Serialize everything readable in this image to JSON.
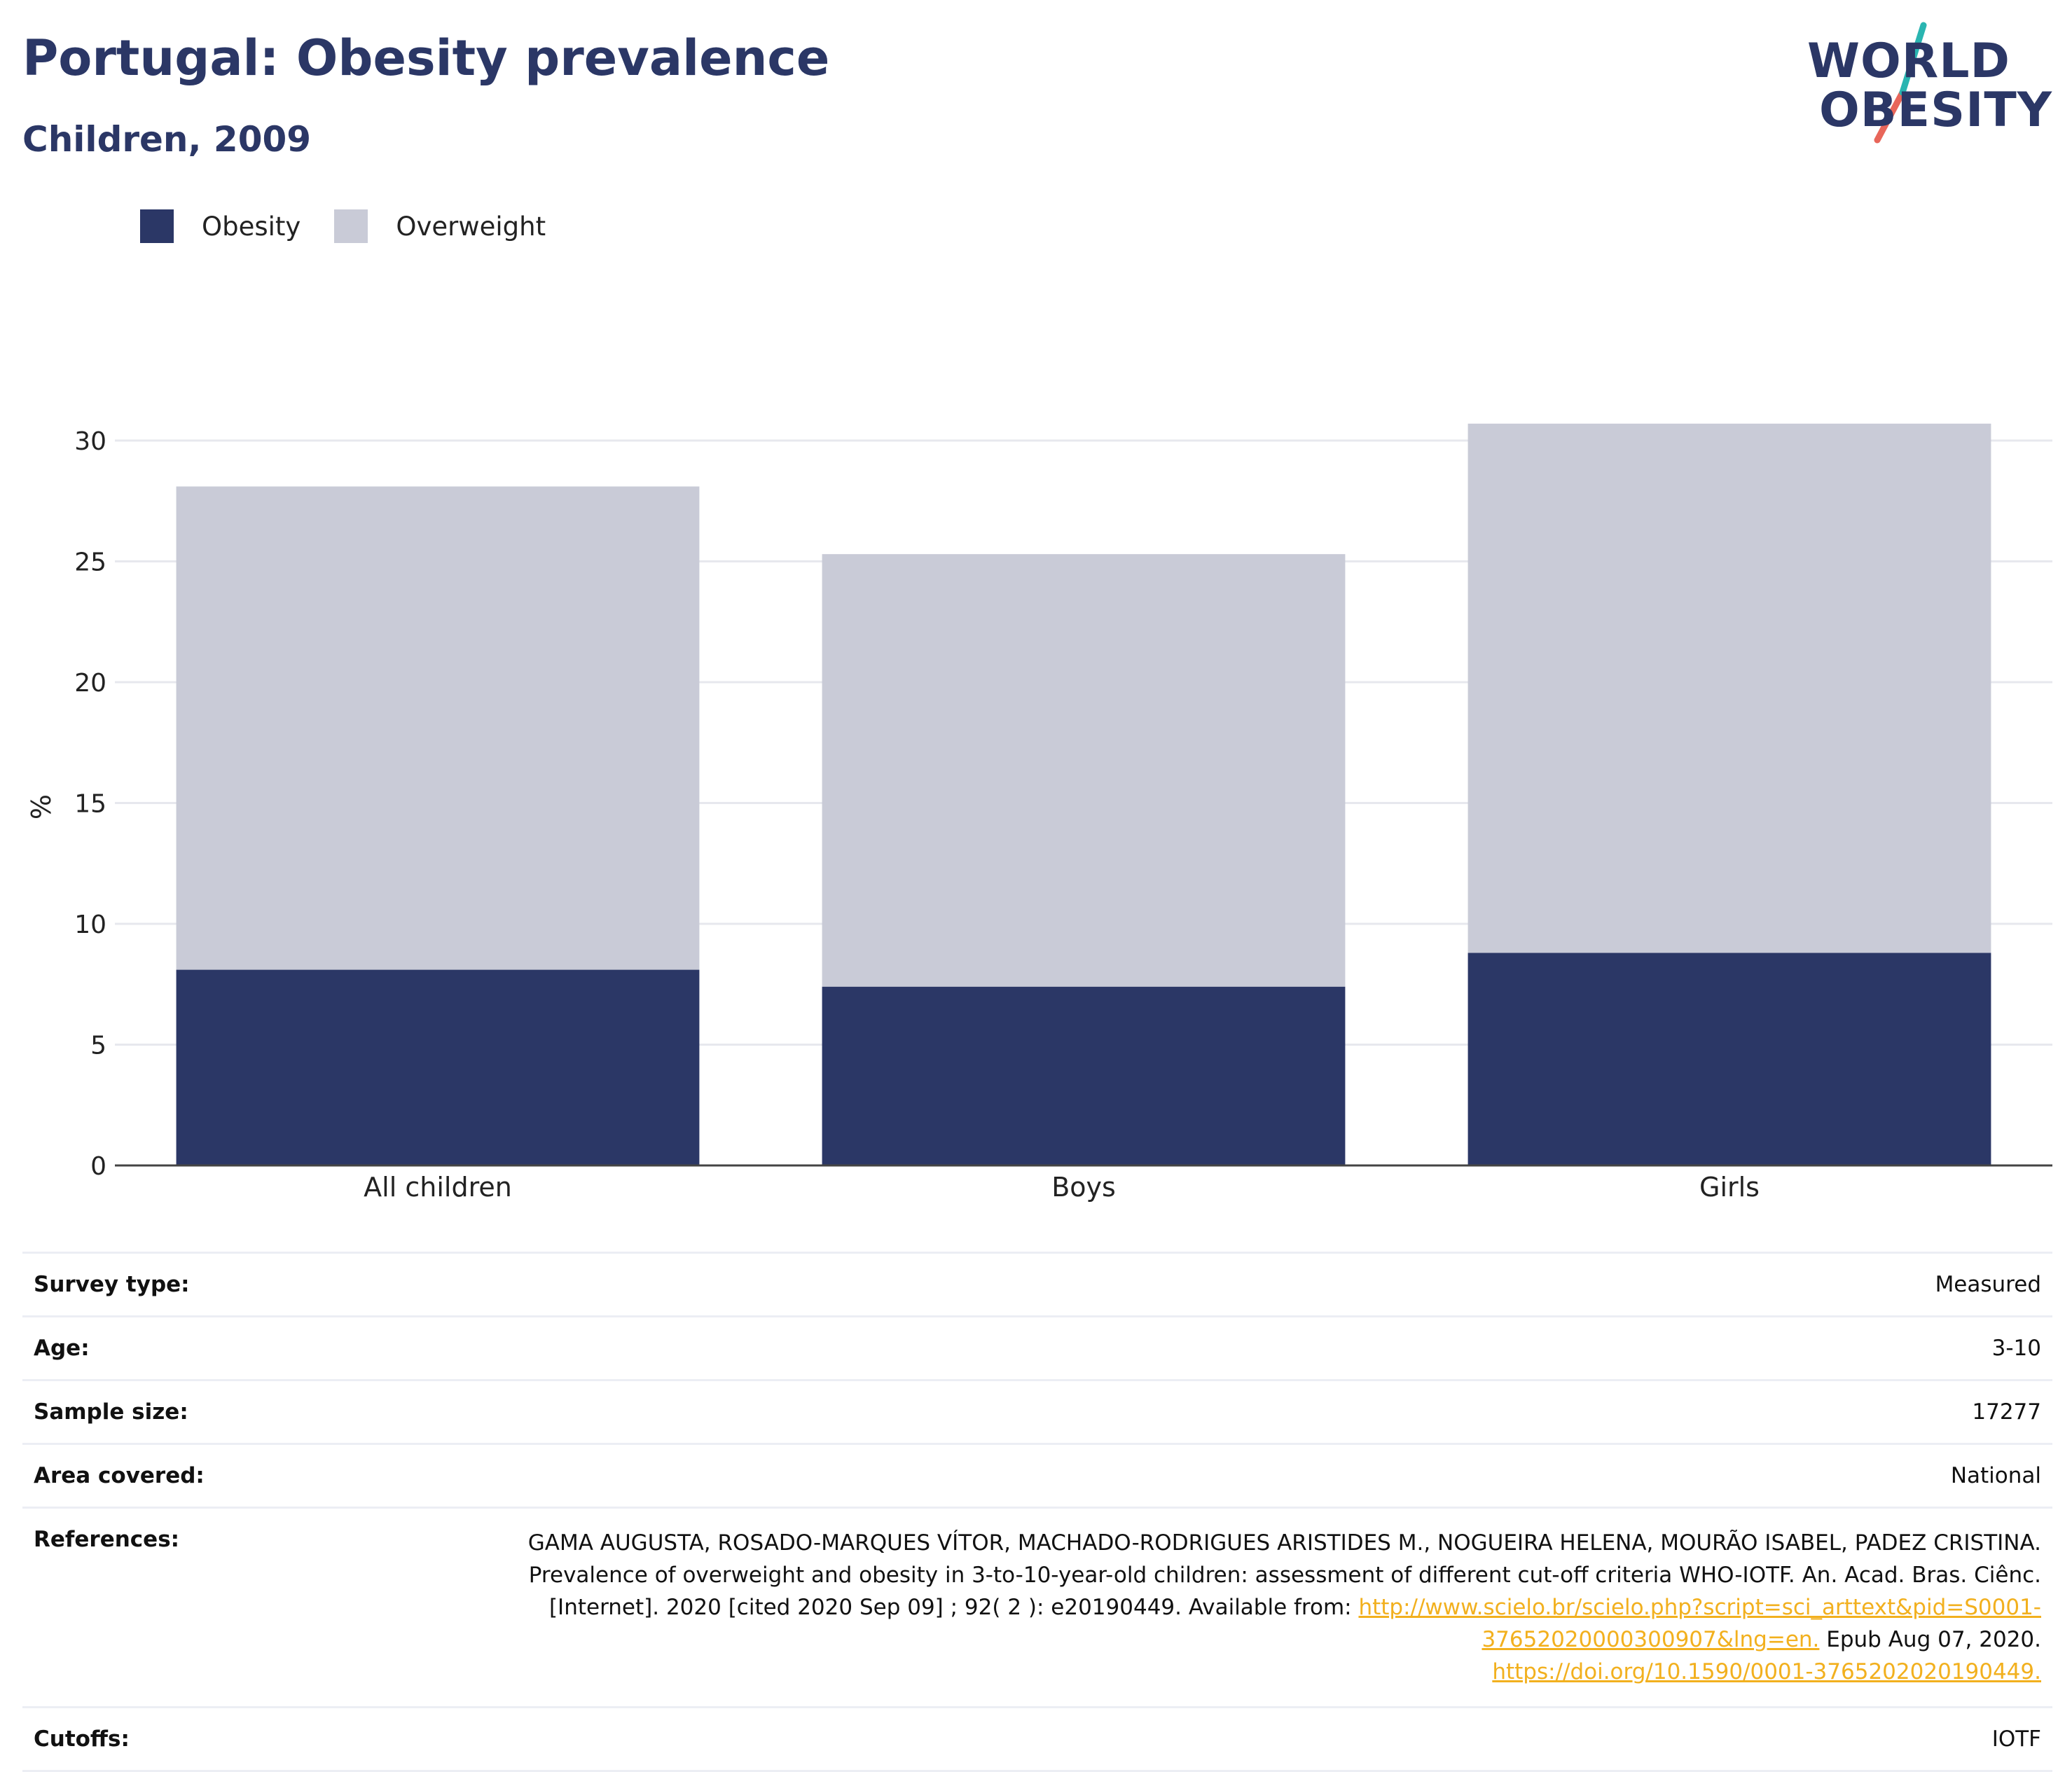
{
  "header": {
    "title": "Portugal: Obesity prevalence",
    "subtitle": "Children, 2009"
  },
  "logo": {
    "line1": "WORLD",
    "line2": "OBESITY",
    "colors": {
      "text": "#2b3766",
      "slash_top": "#2ab5b1",
      "slash_bottom": "#e8665a"
    }
  },
  "legend": [
    {
      "label": "Obesity",
      "color": "#2b3766"
    },
    {
      "label": "Overweight",
      "color": "#c9cbd7"
    }
  ],
  "chart_data": {
    "type": "bar",
    "stacked": true,
    "categories": [
      "All children",
      "Boys",
      "Girls"
    ],
    "series": [
      {
        "name": "Obesity",
        "color": "#2b3766",
        "values": [
          8.1,
          7.4,
          8.8
        ]
      },
      {
        "name": "Overweight",
        "color": "#c9cbd7",
        "values": [
          20.0,
          17.9,
          21.9
        ]
      }
    ],
    "ylabel": "%",
    "ylim": [
      0,
      32
    ],
    "yticks": [
      0,
      5,
      10,
      15,
      20,
      25,
      30
    ],
    "grid": true,
    "legend_position": "top-left"
  },
  "info": {
    "survey_type": {
      "key": "Survey type:",
      "value": "Measured"
    },
    "age": {
      "key": "Age:",
      "value": "3-10"
    },
    "sample_size": {
      "key": "Sample size:",
      "value": "17277"
    },
    "area": {
      "key": "Area covered:",
      "value": "National"
    },
    "references": {
      "key": "References:",
      "text1": "GAMA AUGUSTA, ROSADO-MARQUES VÍTOR, MACHADO-RODRIGUES ARISTIDES M., NOGUEIRA HELENA, MOURÃO ISABEL, PADEZ CRISTINA. Prevalence of overweight and obesity in 3-to-10-year-old children: assessment of different cut-off criteria WHO-IOTF. An. Acad. Bras. Ciênc. [Internet]. 2020 [cited 2020 Sep 09] ; 92( 2 ): e20190449. Available from:",
      "link1": "http://www.scielo.br/scielo.php?script=sci_arttext&pid=S0001-37652020000300907&lng=en.",
      "text2": "Epub Aug 07, 2020.",
      "link2": "https://doi.org/10.1590/0001-3765202020190449."
    },
    "cutoffs": {
      "key": "Cutoffs:",
      "value": "IOTF"
    }
  }
}
